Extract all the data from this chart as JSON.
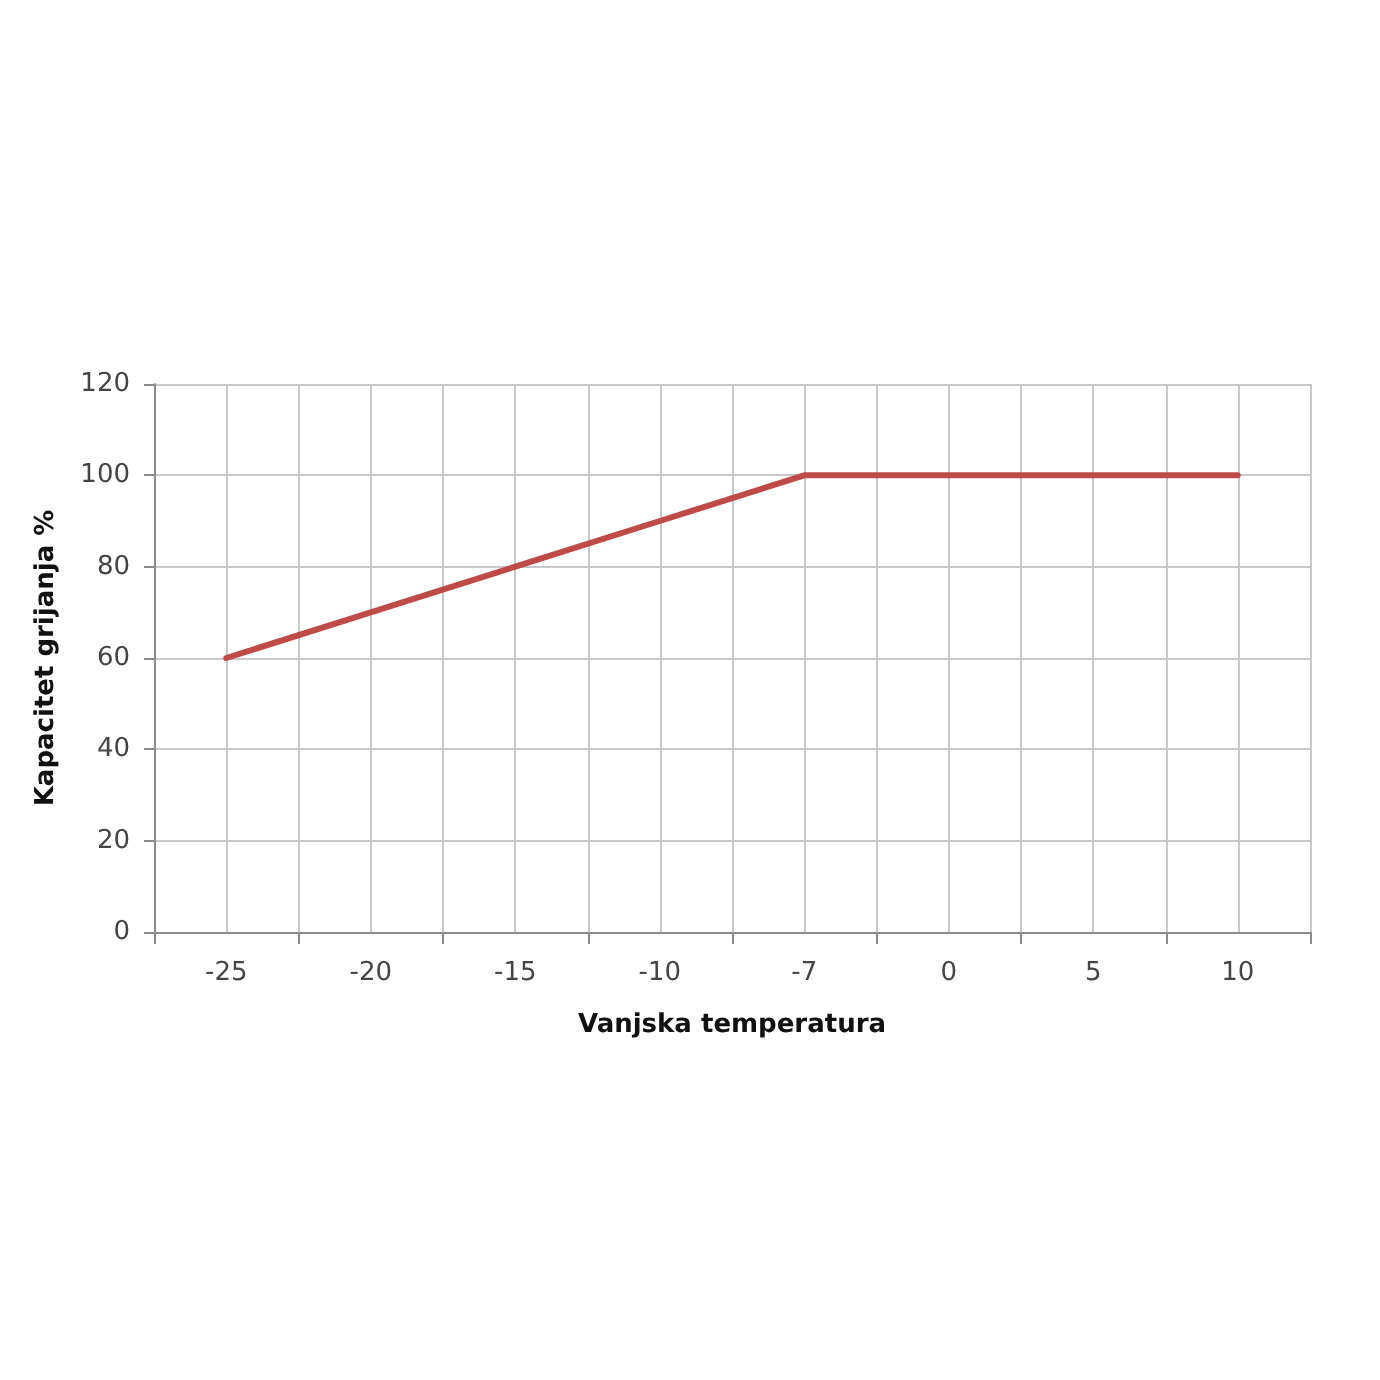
{
  "chart_data": {
    "type": "line",
    "categories": [
      "-25",
      "-20",
      "-15",
      "-10",
      "-7",
      "0",
      "5",
      "10"
    ],
    "series": [
      {
        "color": "#be4b48",
        "values": [
          60,
          70,
          80,
          90,
          100,
          100,
          100,
          100
        ]
      }
    ],
    "xlabel": "Vanjska temperatura",
    "ylabel": "Kapacitet grijanja %",
    "ylim": [
      0,
      120
    ],
    "yticks": [
      0,
      20,
      40,
      60,
      80,
      100,
      120
    ],
    "grid": true,
    "marker": "none",
    "line_style": "solid"
  }
}
